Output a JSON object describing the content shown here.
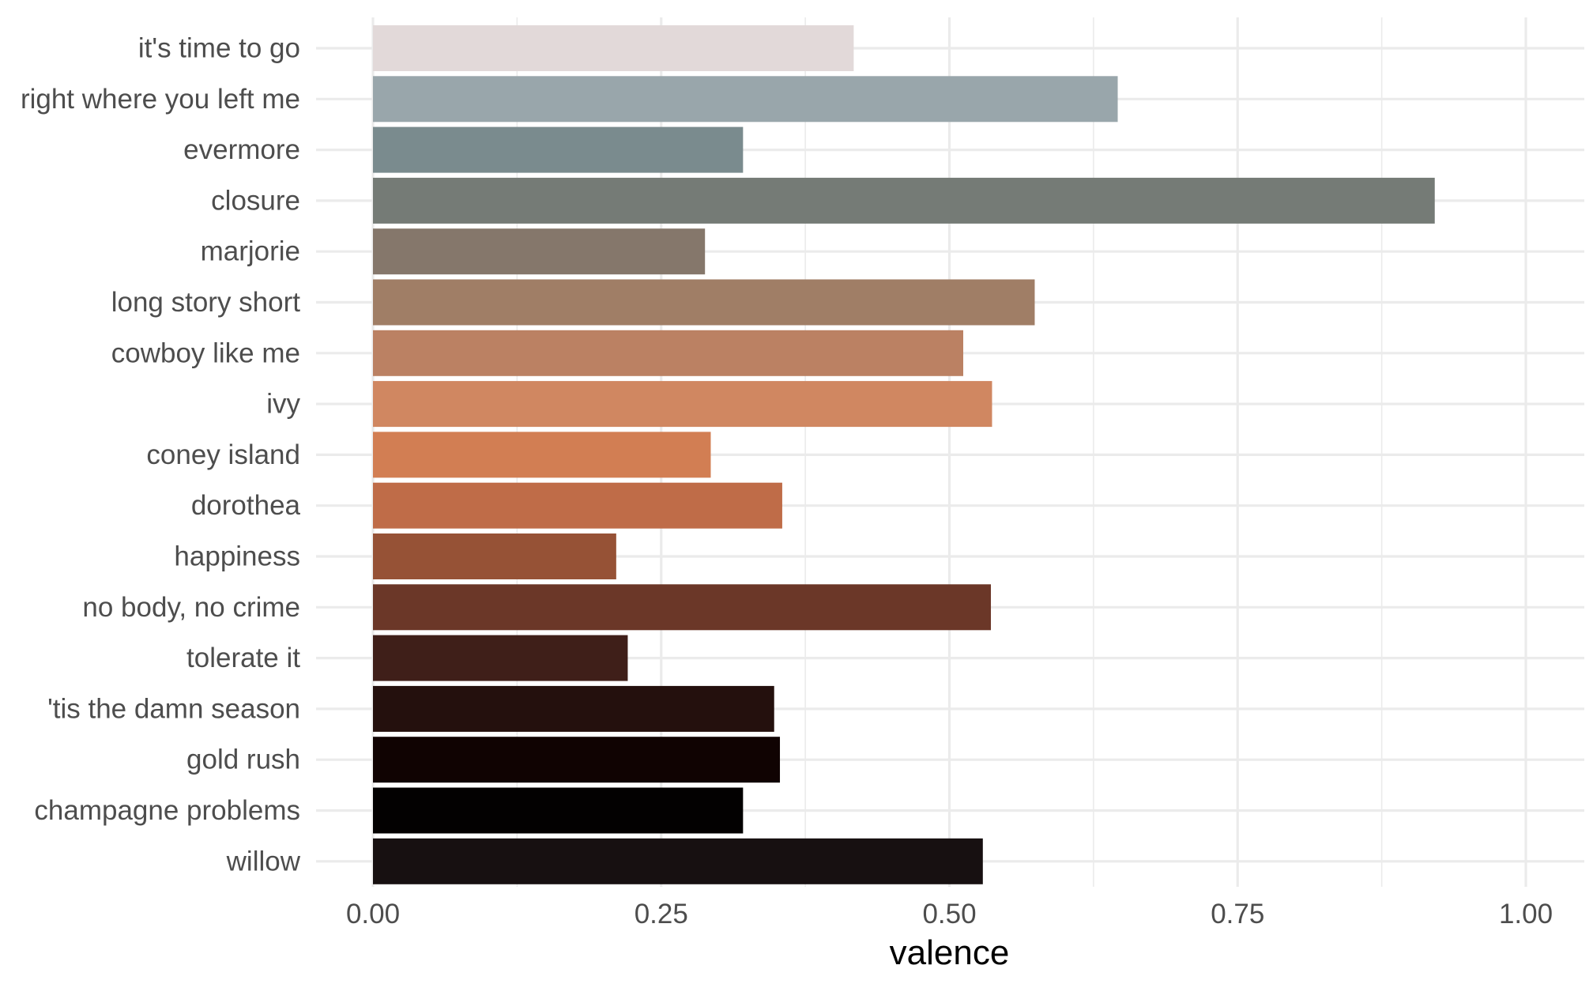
{
  "chart_data": {
    "type": "bar",
    "orientation": "horizontal",
    "xlabel": "valence",
    "ylabel": "",
    "xlim": [
      0,
      1.05
    ],
    "x_ticks": [
      0,
      0.25,
      0.5,
      0.75,
      1.0
    ],
    "x_tick_labels": [
      "0.00",
      "0.25",
      "0.50",
      "0.75",
      "1.00"
    ],
    "grid": true,
    "legend": "none",
    "categories": [
      "it's time to go",
      "right where you left me",
      "evermore",
      "closure",
      "marjorie",
      "long story short",
      "cowboy like me",
      "ivy",
      "coney island",
      "dorothea",
      "happiness",
      "no body, no crime",
      "tolerate it",
      "'tis the damn season",
      "gold rush",
      "champagne problems",
      "willow"
    ],
    "values": [
      0.417,
      0.646,
      0.321,
      0.921,
      0.288,
      0.574,
      0.512,
      0.537,
      0.293,
      0.355,
      0.211,
      0.536,
      0.221,
      0.348,
      0.353,
      0.321,
      0.529
    ],
    "colors": [
      "#e2d9d9",
      "#99a6ab",
      "#7a8b8e",
      "#757b76",
      "#85776b",
      "#a07e66",
      "#bb8163",
      "#d08761",
      "#d27e53",
      "#bf6c48",
      "#965236",
      "#6b3728",
      "#3f1f19",
      "#24100d",
      "#100302",
      "#030101",
      "#171011"
    ]
  }
}
